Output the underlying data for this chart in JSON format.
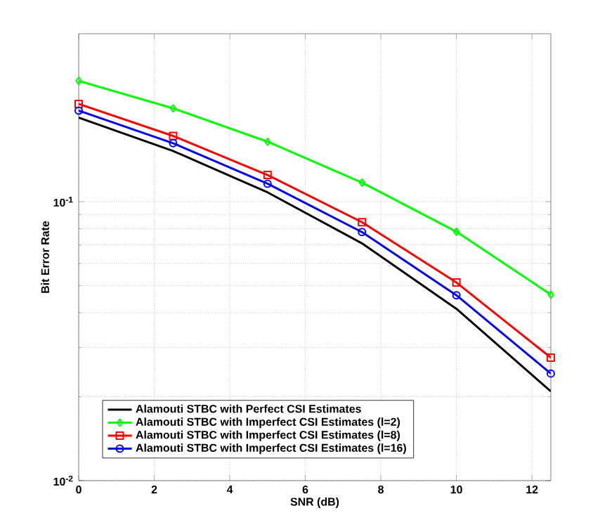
{
  "chart_data": {
    "type": "line",
    "xlabel": "SNR (dB)",
    "ylabel": "Bit Error Rate",
    "x": [
      0,
      2.5,
      5,
      7.5,
      10,
      12.5
    ],
    "series": [
      {
        "name": "Alamouti STBC with Perfect CSI Estimates",
        "color": "#000000",
        "marker": "none",
        "values": [
          0.2,
          0.152,
          0.108,
          0.0709,
          0.0413,
          0.0209
        ]
      },
      {
        "name": "Alamouti STBC with Imperfect CSI Estimates (l=2)",
        "color": "#00ff00",
        "marker": "diamond",
        "values": [
          0.271,
          0.216,
          0.164,
          0.117,
          0.078,
          0.0464
        ]
      },
      {
        "name": "Alamouti STBC with Imperfect CSI Estimates (l=8)",
        "color": "#ff0000",
        "marker": "square",
        "values": [
          0.224,
          0.172,
          0.1246,
          0.0844,
          0.0513,
          0.0276
        ]
      },
      {
        "name": "Alamouti STBC with Imperfect CSI Estimates (l=16)",
        "color": "#0000ff",
        "marker": "circle",
        "values": [
          0.212,
          0.162,
          0.116,
          0.0778,
          0.0462,
          0.0242
        ]
      }
    ],
    "xlim": [
      0,
      12.5
    ],
    "ylim": [
      0.01,
      0.4
    ],
    "log": "y",
    "xticks": [
      0,
      2,
      4,
      6,
      8,
      10,
      12
    ],
    "yticks": [
      {
        "value": 0.01,
        "label": "10$^{-2}$"
      },
      {
        "value": 0.1,
        "label": "10$^{-1}$"
      }
    ],
    "grid": true,
    "legend": "bottom left",
    "line_style": "solid"
  }
}
